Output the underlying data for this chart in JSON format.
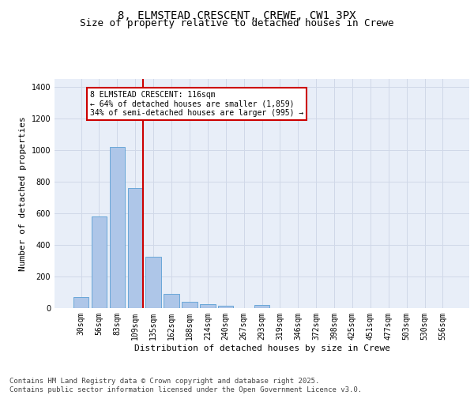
{
  "title_line1": "8, ELMSTEAD CRESCENT, CREWE, CW1 3PX",
  "title_line2": "Size of property relative to detached houses in Crewe",
  "xlabel": "Distribution of detached houses by size in Crewe",
  "ylabel": "Number of detached properties",
  "categories": [
    "30sqm",
    "56sqm",
    "83sqm",
    "109sqm",
    "135sqm",
    "162sqm",
    "188sqm",
    "214sqm",
    "240sqm",
    "267sqm",
    "293sqm",
    "319sqm",
    "346sqm",
    "372sqm",
    "398sqm",
    "425sqm",
    "451sqm",
    "477sqm",
    "503sqm",
    "530sqm",
    "556sqm"
  ],
  "values": [
    70,
    580,
    1020,
    760,
    325,
    90,
    38,
    25,
    15,
    0,
    18,
    0,
    0,
    0,
    0,
    0,
    0,
    0,
    0,
    0,
    0
  ],
  "bar_color": "#aec6e8",
  "bar_edge_color": "#5a9fd4",
  "vline_color": "#cc0000",
  "annotation_text": "8 ELMSTEAD CRESCENT: 116sqm\n← 64% of detached houses are smaller (1,859)\n34% of semi-detached houses are larger (995) →",
  "annotation_box_color": "#cc0000",
  "annotation_bg": "#ffffff",
  "ylim": [
    0,
    1450
  ],
  "yticks": [
    0,
    200,
    400,
    600,
    800,
    1000,
    1200,
    1400
  ],
  "grid_color": "#d0d8e8",
  "bg_color": "#e8eef8",
  "footer": "Contains HM Land Registry data © Crown copyright and database right 2025.\nContains public sector information licensed under the Open Government Licence v3.0.",
  "title_fontsize": 10,
  "subtitle_fontsize": 9,
  "axis_fontsize": 8,
  "tick_fontsize": 7,
  "footer_fontsize": 6.5,
  "annotation_fontsize": 7
}
